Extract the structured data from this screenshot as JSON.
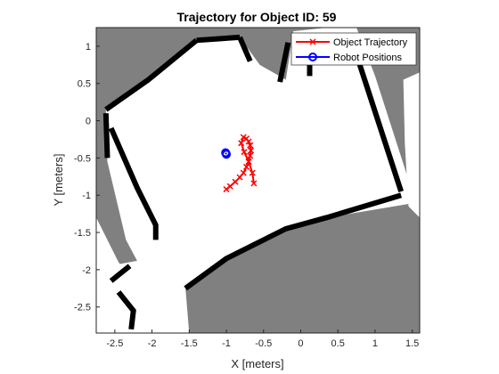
{
  "chart_data": {
    "type": "scatter",
    "title": "Trajectory for Object ID: 59",
    "xlabel": "X [meters]",
    "ylabel": "Y [meters]",
    "xlim": [
      -2.75,
      1.6
    ],
    "ylim": [
      -2.85,
      1.25
    ],
    "xticks": [
      -2.5,
      -2,
      -1.5,
      -1,
      -0.5,
      0,
      0.5,
      1,
      1.5
    ],
    "yticks": [
      1,
      0.5,
      0,
      -0.5,
      -1,
      -1.5,
      -2,
      -2.5
    ],
    "xtick_labels": [
      "-2.5",
      "-2",
      "-1.5",
      "-1",
      "-0.5",
      "0",
      "0.5",
      "1",
      "1.5"
    ],
    "ytick_labels": [
      "1",
      "0.5",
      "0",
      "-0.5",
      "-1",
      "-1.5",
      "-2",
      "-2.5"
    ],
    "legend_position": "top-right",
    "series": [
      {
        "name": "Object Trajectory",
        "color": "#ff0000",
        "marker": "x",
        "x": [
          -1.0,
          -0.95,
          -0.88,
          -0.82,
          -0.77,
          -0.73,
          -0.7,
          -0.68,
          -0.67,
          -0.68,
          -0.7,
          -0.73,
          -0.77,
          -0.8,
          -0.76,
          -0.7,
          -0.65,
          -0.63
        ],
        "y": [
          -0.92,
          -0.88,
          -0.82,
          -0.76,
          -0.7,
          -0.62,
          -0.55,
          -0.47,
          -0.4,
          -0.33,
          -0.28,
          -0.24,
          -0.22,
          -0.3,
          -0.42,
          -0.55,
          -0.7,
          -0.84
        ]
      },
      {
        "name": "Robot Positions",
        "color": "#0000ff",
        "marker": "o",
        "x": [
          -1.01,
          -1.0
        ],
        "y": [
          -0.43,
          -0.45
        ]
      }
    ],
    "occupancy_map": {
      "background_color": "#808080",
      "free_color": "#ffffff",
      "wall_color": "#000000",
      "free_regions": [
        [
          [
            -2.35,
            -2.85
          ],
          [
            -2.55,
            -2.15
          ],
          [
            -2.58,
            -1.95
          ],
          [
            -2.2,
            -1.88
          ],
          [
            -2.35,
            -1.6
          ],
          [
            -2.6,
            -0.55
          ],
          [
            -2.62,
            0.15
          ],
          [
            -2.05,
            0.55
          ],
          [
            -1.35,
            1.08
          ],
          [
            -0.82,
            1.12
          ],
          [
            -0.55,
            0.75
          ],
          [
            -0.2,
            0.55
          ],
          [
            -0.1,
            1.2
          ],
          [
            0.35,
            1.25
          ],
          [
            0.75,
            1.25
          ],
          [
            1.0,
            0.6
          ],
          [
            1.5,
            -0.95
          ],
          [
            1.55,
            -1.1
          ],
          [
            0.35,
            -1.3
          ],
          [
            -0.2,
            -1.45
          ],
          [
            -1.1,
            -1.9
          ],
          [
            -1.55,
            -2.25
          ],
          [
            -1.5,
            -2.85
          ]
        ],
        [
          [
            -2.75,
            -2.85
          ],
          [
            -2.75,
            -1.3
          ],
          [
            -2.45,
            -1.9
          ],
          [
            -2.2,
            -2.2
          ],
          [
            -2.15,
            -2.85
          ]
        ],
        [
          [
            1.38,
            0.55
          ],
          [
            1.6,
            0.65
          ],
          [
            1.6,
            -1.3
          ],
          [
            1.45,
            -1.15
          ],
          [
            1.4,
            -0.3
          ]
        ]
      ],
      "walls": [
        [
          [
            -1.4,
            1.08
          ],
          [
            -2.05,
            0.55
          ],
          [
            -2.62,
            0.15
          ]
        ],
        [
          [
            -1.4,
            1.08
          ],
          [
            -0.82,
            1.12
          ]
        ],
        [
          [
            -0.82,
            1.12
          ],
          [
            -0.68,
            0.8
          ]
        ],
        [
          [
            -0.28,
            0.52
          ],
          [
            -0.17,
            1.05
          ]
        ],
        [
          [
            0.12,
            0.95
          ],
          [
            0.12,
            0.6
          ]
        ],
        [
          [
            0.68,
            1.1
          ],
          [
            1.35,
            -0.95
          ]
        ],
        [
          [
            -2.55,
            -0.1
          ],
          [
            -2.2,
            -0.9
          ],
          [
            -1.95,
            -1.4
          ],
          [
            -1.95,
            -1.6
          ]
        ],
        [
          [
            1.35,
            -1.0
          ],
          [
            0.35,
            -1.3
          ],
          [
            -0.2,
            -1.45
          ],
          [
            -1.0,
            -1.85
          ],
          [
            -1.55,
            -2.25
          ]
        ],
        [
          [
            -2.3,
            -1.95
          ],
          [
            -2.55,
            -2.15
          ]
        ],
        [
          [
            -2.45,
            -2.3
          ],
          [
            -2.25,
            -2.55
          ],
          [
            -2.28,
            -2.8
          ]
        ],
        [
          [
            -2.6,
            -0.5
          ],
          [
            -2.62,
            0.1
          ]
        ]
      ]
    }
  }
}
